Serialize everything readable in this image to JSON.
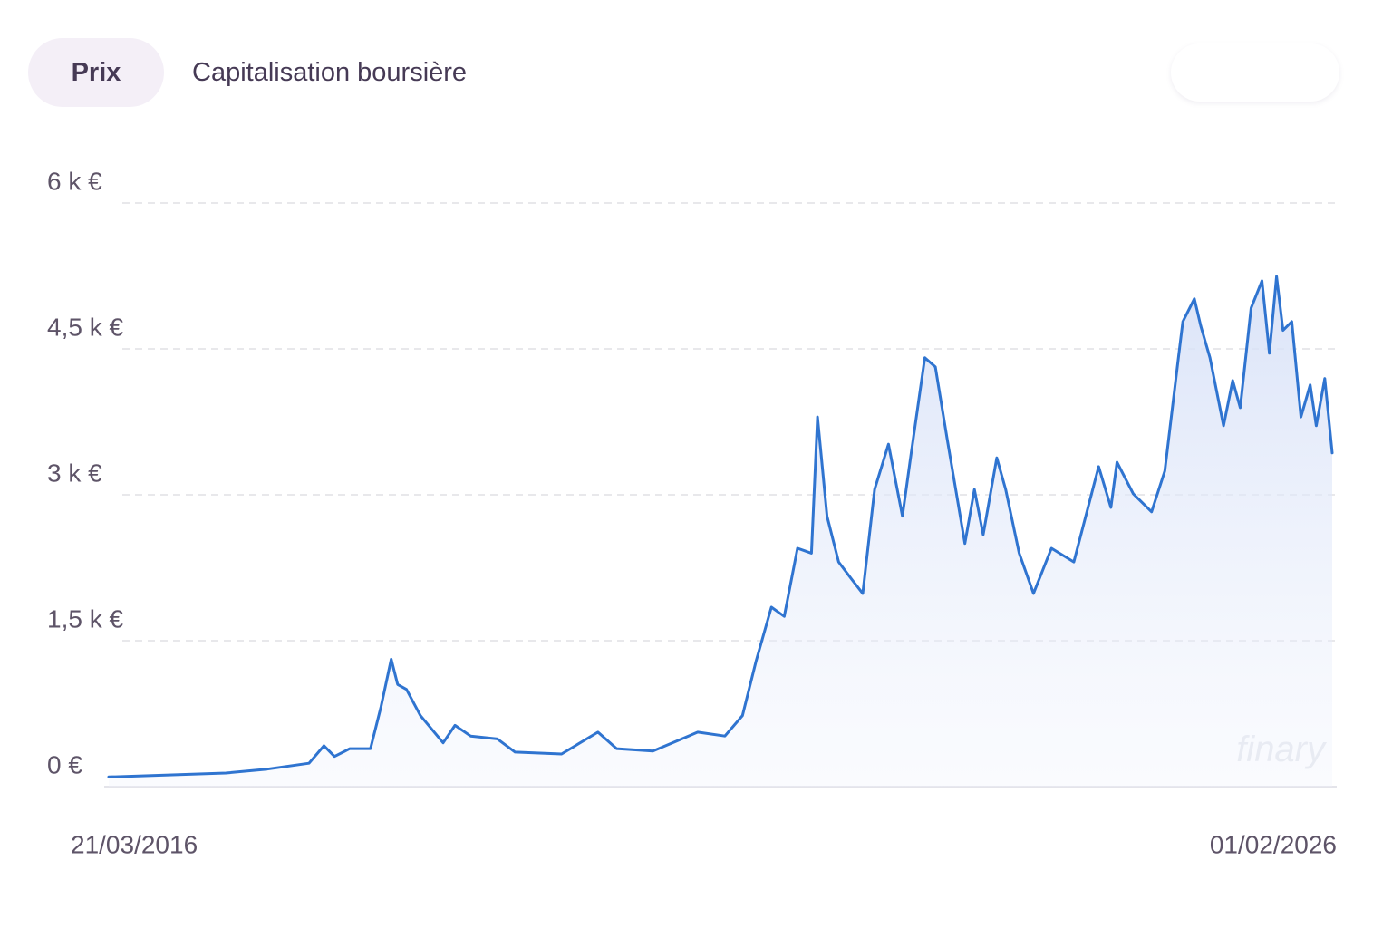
{
  "tabs": [
    "Prix",
    "Capitalisation boursière"
  ],
  "watermark": "finary",
  "chart_data": {
    "type": "line",
    "color": "#2f74d0",
    "grid": true,
    "x": [
      "2016-03-21",
      "2017-03-01",
      "2017-07-01",
      "2017-11-01",
      "2017-12-15",
      "2018-01-15",
      "2018-03-01",
      "2018-05-01",
      "2018-06-01",
      "2018-07-01",
      "2018-07-20",
      "2018-08-15",
      "2018-09-25",
      "2018-12-01",
      "2019-01-05",
      "2019-02-20",
      "2019-05-10",
      "2019-07-01",
      "2019-11-15",
      "2020-03-01",
      "2020-04-25",
      "2020-08-10",
      "2020-12-20",
      "2021-03-10",
      "2021-05-01",
      "2021-06-10",
      "2021-07-25",
      "2021-09-01",
      "2021-10-10",
      "2021-11-20",
      "2021-12-08",
      "2022-01-05",
      "2022-02-08",
      "2022-03-20",
      "2022-04-20",
      "2022-05-25",
      "2022-07-05",
      "2022-08-15",
      "2022-09-10",
      "2022-10-20",
      "2022-11-20",
      "2022-12-25",
      "2023-02-15",
      "2023-03-15",
      "2023-04-10",
      "2023-05-20",
      "2023-06-15",
      "2023-07-25",
      "2023-09-05",
      "2023-10-28",
      "2024-01-02",
      "2024-03-15",
      "2024-04-20",
      "2024-05-08",
      "2024-06-25",
      "2024-08-18",
      "2024-09-26",
      "2024-11-05",
      "2024-11-18",
      "2024-12-22",
      "2025-01-10",
      "2025-02-06",
      "2025-03-18",
      "2025-04-14",
      "2025-05-06",
      "2025-06-07",
      "2025-07-09",
      "2025-07-31",
      "2025-08-21",
      "2025-09-09",
      "2025-10-05",
      "2025-11-01",
      "2025-11-28",
      "2025-12-16",
      "2026-01-10",
      "2026-02-01"
    ],
    "values": [
      100,
      140,
      180,
      240,
      420,
      310,
      390,
      390,
      820,
      1310,
      1050,
      1000,
      730,
      450,
      630,
      520,
      490,
      355,
      335,
      560,
      390,
      365,
      560,
      520,
      730,
      1290,
      1845,
      1750,
      2450,
      2400,
      3800,
      2780,
      2310,
      2125,
      1985,
      3055,
      3520,
      2780,
      3430,
      4410,
      4315,
      3570,
      2500,
      3055,
      2590,
      3380,
      3055,
      2400,
      1985,
      2450,
      2310,
      3290,
      2870,
      3335,
      3010,
      2825,
      3245,
      4410,
      4780,
      5015,
      4735,
      4410,
      3710,
      4175,
      3895,
      4920,
      5200,
      4455,
      5245,
      4690,
      4780,
      3800,
      4130,
      3710,
      4195,
      3430
    ],
    "xlim": [
      "2016-03-21",
      "2026-02-01"
    ],
    "xticks": [
      {
        "value": "2016-03-21",
        "label": "21/03/2016"
      },
      {
        "value": "2026-02-01",
        "label": "01/02/2026"
      }
    ],
    "ylim": [
      0,
      6000
    ],
    "yticks": [
      {
        "value": 0,
        "label": "0 €"
      },
      {
        "value": 1500,
        "label": "1,5 k €"
      },
      {
        "value": 3000,
        "label": "3 k €"
      },
      {
        "value": 4500,
        "label": "4,5 k €"
      },
      {
        "value": 6000,
        "label": "6 k €"
      }
    ]
  }
}
